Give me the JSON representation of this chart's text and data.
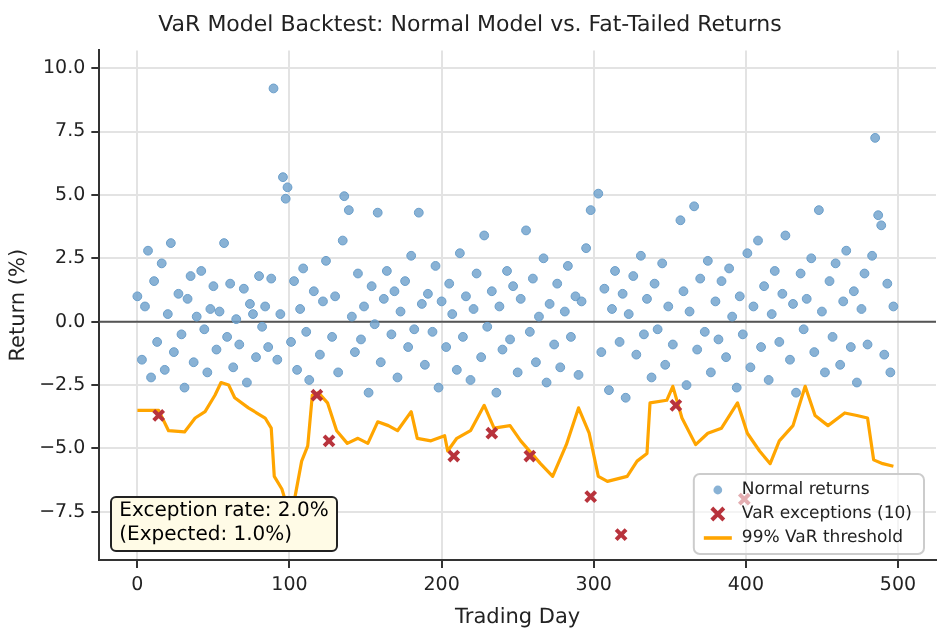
{
  "chart_data": {
    "type": "scatter",
    "title": "VaR Model Backtest: Normal Model vs. Fat-Tailed Returns",
    "xlabel": "Trading Day",
    "ylabel": "Return (%)",
    "xlim": [
      -25,
      525
    ],
    "xticks": [
      0,
      100,
      200,
      300,
      400,
      500
    ],
    "ylim": [
      -9.4,
      10.7
    ],
    "yticks": [
      {
        "value": -7.5,
        "label": "−7.5"
      },
      {
        "value": -5,
        "label": "−5.0"
      },
      {
        "value": -2.5,
        "label": "−2.5"
      },
      {
        "value": 0,
        "label": "0.0"
      },
      {
        "value": 2.5,
        "label": "2.5"
      },
      {
        "value": 5,
        "label": "5.0"
      },
      {
        "value": 7.5,
        "label": "7.5"
      },
      {
        "value": 10,
        "label": "10.0"
      }
    ],
    "grid": true,
    "legend": "bottom right",
    "ref_lines": [
      {
        "axis": "y",
        "value": 0,
        "color": "#555555"
      }
    ],
    "annotations": [
      "Exception rate: 2.0%\n(Expected: 1.0%)"
    ],
    "series": [
      {
        "name": "Normal returns",
        "type": "scatter",
        "marker": "circle",
        "color": "#6b9fcb",
        "x": [
          0,
          3,
          5,
          7,
          9,
          11,
          13,
          16,
          18,
          20,
          22,
          24,
          27,
          29,
          31,
          33,
          35,
          37,
          39,
          42,
          44,
          46,
          48,
          50,
          52,
          54,
          57,
          59,
          61,
          63,
          65,
          67,
          70,
          72,
          74,
          76,
          78,
          80,
          82,
          84,
          86,
          88,
          89.5,
          92,
          94,
          95.7,
          97.5,
          98.7,
          101,
          103,
          105,
          107,
          109,
          111,
          113,
          116,
          120,
          122,
          124,
          128,
          130,
          132,
          135,
          136,
          139,
          141,
          143,
          145,
          147,
          149,
          152,
          154,
          156,
          158,
          160,
          162,
          164,
          167,
          169,
          171,
          173,
          176,
          178,
          180,
          182,
          185,
          187,
          189,
          191,
          194,
          196,
          198,
          200,
          203,
          205,
          207,
          210,
          212,
          214,
          216,
          219,
          221,
          223,
          226,
          228,
          230,
          233,
          236,
          238,
          240,
          243,
          245,
          247,
          250,
          252,
          255.5,
          258,
          260,
          262,
          264,
          267,
          269,
          271,
          274,
          276,
          278,
          281,
          283,
          285,
          288,
          290,
          292,
          295,
          298,
          303,
          305,
          307,
          310,
          312,
          314,
          317,
          319,
          321,
          323,
          326,
          328,
          331,
          333,
          335,
          338,
          340,
          342,
          345,
          347,
          349,
          352,
          357,
          359,
          361,
          363,
          366,
          368,
          370,
          373,
          375,
          377,
          380,
          382,
          384,
          387,
          389,
          391,
          394,
          396,
          398,
          401,
          403,
          405,
          408,
          410,
          412,
          415,
          417,
          419,
          422,
          424,
          426,
          429,
          431,
          433,
          436,
          438,
          440,
          443,
          445,
          448,
          450,
          452,
          455,
          457,
          459,
          462,
          464,
          466,
          469,
          471,
          473,
          476,
          478,
          480,
          483,
          485,
          487,
          489,
          491,
          493,
          495,
          497
        ],
        "values": [
          1.0,
          -1.5,
          0.6,
          2.8,
          -2.2,
          1.6,
          -0.8,
          2.3,
          -1.9,
          0.3,
          3.1,
          -1.2,
          1.1,
          -0.5,
          -2.6,
          0.9,
          1.8,
          -1.6,
          0.2,
          2.0,
          -0.3,
          -2.0,
          0.5,
          1.4,
          -1.1,
          0.4,
          3.1,
          -0.6,
          1.5,
          -1.8,
          0.1,
          -0.9,
          1.3,
          -2.4,
          0.7,
          0.3,
          -1.4,
          1.8,
          -0.2,
          0.6,
          -1.0,
          1.7,
          9.2,
          -1.5,
          0.3,
          5.7,
          4.85,
          5.3,
          -0.8,
          1.6,
          -1.9,
          0.5,
          2.1,
          -0.4,
          -2.3,
          1.2,
          -1.3,
          0.8,
          2.4,
          -0.6,
          1.0,
          -2.0,
          3.2,
          4.95,
          4.4,
          0.2,
          -1.2,
          1.9,
          -0.7,
          0.6,
          -2.8,
          1.4,
          -0.1,
          4.3,
          -1.6,
          0.9,
          2.0,
          -0.5,
          1.2,
          -2.2,
          0.4,
          1.6,
          -1.0,
          2.6,
          -0.3,
          4.3,
          0.7,
          -1.7,
          1.1,
          -0.4,
          2.2,
          -2.6,
          0.8,
          -1.0,
          1.5,
          0.3,
          -1.9,
          2.7,
          -0.6,
          1.0,
          -2.3,
          0.5,
          1.9,
          -1.4,
          3.4,
          -0.2,
          1.2,
          -2.8,
          0.6,
          -1.1,
          2.0,
          -0.7,
          1.4,
          -2.0,
          0.9,
          3.6,
          -0.4,
          1.7,
          -1.6,
          0.2,
          2.5,
          -2.4,
          0.7,
          -0.9,
          1.5,
          -1.8,
          0.4,
          2.2,
          -0.6,
          1.0,
          -2.1,
          0.8,
          2.9,
          4.4,
          5.05,
          -1.2,
          1.3,
          -2.7,
          0.5,
          2.0,
          -0.8,
          1.1,
          -3.0,
          0.3,
          1.8,
          -1.3,
          2.6,
          -0.5,
          0.9,
          -2.2,
          1.5,
          -0.3,
          2.3,
          -1.7,
          0.6,
          -0.9,
          4.0,
          1.2,
          -2.5,
          0.4,
          4.55,
          -1.1,
          1.7,
          -0.4,
          2.4,
          -2.0,
          0.8,
          -0.7,
          1.6,
          -1.4,
          2.1,
          0.2,
          -2.6,
          1.0,
          -0.5,
          2.7,
          -1.8,
          0.6,
          3.2,
          -1.0,
          1.4,
          -2.3,
          0.3,
          2.0,
          -0.8,
          1.1,
          3.4,
          -1.5,
          0.7,
          -2.8,
          1.9,
          -0.3,
          0.9,
          2.5,
          -1.2,
          4.4,
          0.4,
          -2.0,
          1.6,
          -0.6,
          2.3,
          -1.7,
          0.8,
          2.8,
          -1.0,
          1.2,
          -2.4,
          0.5,
          1.9,
          -0.9,
          2.6,
          7.25,
          4.2,
          3.8,
          -1.3,
          1.5,
          -2.0,
          0.6
        ]
      },
      {
        "name": "VaR exceptions (10)",
        "type": "scatter",
        "marker": "cross",
        "color": "#b8333c",
        "x": [
          14,
          118,
          126,
          208,
          233,
          258,
          298,
          318,
          354,
          399
        ],
        "values": [
          -3.7,
          -2.9,
          -4.7,
          -5.3,
          -4.4,
          -5.3,
          -6.9,
          -8.4,
          -3.3,
          -7.0
        ]
      },
      {
        "name": "99% VaR threshold",
        "type": "line",
        "marker": "none",
        "color": "#ffa500",
        "x": [
          0,
          14,
          20.5,
          31,
          38,
          44.5,
          51,
          55,
          60,
          64,
          73,
          84,
          88,
          90,
          95,
          97,
          103.5,
          108,
          112,
          115,
          119,
          125,
          131,
          138,
          145,
          151.5,
          158,
          165,
          171,
          180,
          184,
          193,
          202,
          204,
          210,
          219,
          228,
          234.5,
          245,
          252,
          265,
          273,
          282,
          290,
          297,
          303,
          309,
          322,
          328.5,
          335,
          337,
          348,
          352,
          358,
          367,
          375,
          384,
          394.5,
          401,
          409,
          416,
          422,
          431,
          439,
          445.5,
          454,
          465,
          473,
          480,
          484,
          490,
          497
        ],
        "values": [
          -3.5,
          -3.5,
          -4.3,
          -4.35,
          -3.8,
          -3.55,
          -2.9,
          -2.4,
          -2.5,
          -3.0,
          -3.4,
          -3.8,
          -4.2,
          -6.1,
          -6.6,
          -7.0,
          -6.95,
          -5.5,
          -4.9,
          -2.9,
          -2.8,
          -3.2,
          -4.3,
          -4.8,
          -4.6,
          -4.8,
          -3.95,
          -4.1,
          -4.3,
          -3.55,
          -4.6,
          -4.7,
          -4.5,
          -5.1,
          -4.6,
          -4.3,
          -3.3,
          -4.2,
          -4.1,
          -4.7,
          -5.6,
          -6.1,
          -4.85,
          -3.4,
          -4.4,
          -6.1,
          -6.3,
          -6.1,
          -5.5,
          -5.2,
          -3.2,
          -3.1,
          -2.55,
          -3.8,
          -4.85,
          -4.4,
          -4.2,
          -3.2,
          -4.4,
          -5.1,
          -5.6,
          -4.7,
          -4.1,
          -2.55,
          -3.7,
          -4.1,
          -3.6,
          -3.7,
          -3.8,
          -5.45,
          -5.6,
          -5.7
        ]
      }
    ]
  }
}
